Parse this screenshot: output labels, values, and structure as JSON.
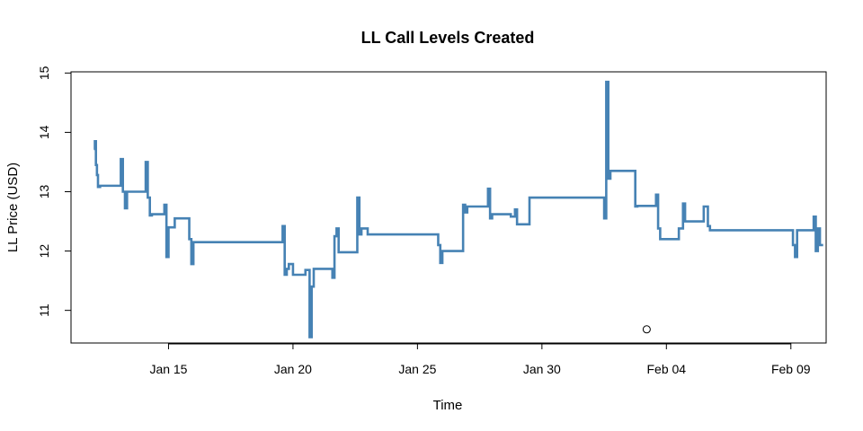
{
  "chart_data": {
    "type": "line",
    "title": "LL Call Levels Created",
    "xlabel": "Time",
    "ylabel": "LL Price (USD)",
    "xlim": [
      "2024-01-11 02:00",
      "2024-02-10 10:00"
    ],
    "ylim": [
      10.45,
      15.02
    ],
    "x_ticks": [
      {
        "date": "2024-01-15",
        "label": "Jan 15"
      },
      {
        "date": "2024-01-20",
        "label": "Jan 20"
      },
      {
        "date": "2024-01-25",
        "label": "Jan 25"
      },
      {
        "date": "2024-01-30",
        "label": "Jan 30"
      },
      {
        "date": "2024-02-04",
        "label": "Feb 04"
      },
      {
        "date": "2024-02-09",
        "label": "Feb 09"
      }
    ],
    "y_ticks": [
      11,
      12,
      13,
      14,
      15
    ],
    "grid": false,
    "series": [
      {
        "color": "#4682b4",
        "style": "step-line",
        "x": [
          "2024-01-12 00:00",
          "2024-01-12 01:00",
          "2024-01-12 02:00",
          "2024-01-12 03:00",
          "2024-01-12 04:00",
          "2024-01-12 06:00",
          "2024-01-12 08:00",
          "2024-01-12 10:00",
          "2024-01-12 12:00",
          "2024-01-13 00:00",
          "2024-01-13 02:00",
          "2024-01-13 04:00",
          "2024-01-13 06:00",
          "2024-01-13 08:00",
          "2024-01-13 12:00",
          "2024-01-14 00:00",
          "2024-01-14 02:00",
          "2024-01-14 04:00",
          "2024-01-14 06:00",
          "2024-01-14 08:00",
          "2024-01-14 12:00",
          "2024-01-14 18:00",
          "2024-01-14 20:00",
          "2024-01-14 22:00",
          "2024-01-15 00:00",
          "2024-01-15 06:00",
          "2024-01-15 12:00",
          "2024-01-15 18:00",
          "2024-01-15 20:00",
          "2024-01-15 22:00",
          "2024-01-16 00:00",
          "2024-01-16 04:00",
          "2024-01-19 12:00",
          "2024-01-19 14:00",
          "2024-01-19 16:00",
          "2024-01-19 18:00",
          "2024-01-19 20:00",
          "2024-01-20 00:00",
          "2024-01-20 12:00",
          "2024-01-20 14:00",
          "2024-01-20 16:00",
          "2024-01-20 18:00",
          "2024-01-20 20:00",
          "2024-01-21 00:00",
          "2024-01-21 12:00",
          "2024-01-21 14:00",
          "2024-01-21 16:00",
          "2024-01-21 18:00",
          "2024-01-21 20:00",
          "2024-01-22 00:00",
          "2024-01-22 12:00",
          "2024-01-22 14:00",
          "2024-01-22 16:00",
          "2024-01-22 18:00",
          "2024-01-23 00:00",
          "2024-01-25 18:00",
          "2024-01-25 20:00",
          "2024-01-25 22:00",
          "2024-01-26 00:00",
          "2024-01-26 18:00",
          "2024-01-26 20:00",
          "2024-01-26 22:00",
          "2024-01-27 00:00",
          "2024-01-27 18:00",
          "2024-01-27 20:00",
          "2024-01-27 22:00",
          "2024-01-28 00:00",
          "2024-01-28 18:00",
          "2024-01-28 20:00",
          "2024-01-28 22:00",
          "2024-01-29 00:00",
          "2024-01-29 12:00",
          "2024-01-29 14:00",
          "2024-01-29 16:00",
          "2024-02-01 12:00",
          "2024-02-01 14:00",
          "2024-02-01 16:00",
          "2024-02-01 18:00",
          "2024-02-01 20:00",
          "2024-02-02 00:00",
          "2024-02-02 18:00",
          "2024-02-02 20:00",
          "2024-02-03 12:00",
          "2024-02-03 14:00",
          "2024-02-03 16:00",
          "2024-02-03 18:00",
          "2024-02-04 12:00",
          "2024-02-04 14:00",
          "2024-02-04 16:00",
          "2024-02-04 18:00",
          "2024-02-05 12:00",
          "2024-02-05 14:00",
          "2024-02-05 16:00",
          "2024-02-05 18:00",
          "2024-02-08 22:00",
          "2024-02-09 00:00",
          "2024-02-09 02:00",
          "2024-02-09 04:00",
          "2024-02-09 06:00",
          "2024-02-09 20:00",
          "2024-02-09 22:00",
          "2024-02-10 00:00",
          "2024-02-10 02:00",
          "2024-02-10 04:00",
          "2024-02-10 06:00"
        ],
        "y": [
          13.72,
          13.85,
          13.45,
          13.28,
          13.08,
          13.1,
          13.1,
          13.1,
          13.1,
          13.1,
          13.55,
          13.0,
          12.72,
          13.0,
          13.0,
          13.0,
          13.5,
          12.9,
          12.6,
          12.62,
          12.62,
          12.62,
          12.78,
          11.9,
          12.4,
          12.55,
          12.55,
          12.55,
          12.2,
          11.78,
          12.15,
          12.15,
          12.15,
          12.42,
          11.6,
          11.7,
          11.78,
          11.6,
          11.68,
          11.68,
          10.55,
          11.4,
          11.7,
          11.7,
          11.7,
          11.55,
          12.25,
          12.38,
          11.98,
          11.98,
          11.98,
          12.9,
          12.28,
          12.38,
          12.28,
          12.28,
          12.1,
          11.8,
          12.0,
          12.0,
          12.78,
          12.65,
          12.75,
          12.75,
          13.05,
          12.55,
          12.62,
          12.58,
          12.58,
          12.7,
          12.45,
          12.9,
          12.9,
          12.9,
          12.55,
          14.85,
          13.22,
          13.35,
          13.35,
          13.35,
          12.75,
          12.76,
          12.76,
          12.95,
          12.38,
          12.2,
          12.38,
          12.38,
          12.8,
          12.5,
          12.75,
          12.75,
          12.42,
          12.35,
          12.35,
          12.35,
          12.1,
          11.9,
          12.35,
          12.35,
          12.58,
          12.0,
          12.38,
          12.1,
          12.08
        ]
      }
    ],
    "points": [
      {
        "x": "2024-02-03 05:00",
        "y": 10.68,
        "marker": "open-circle"
      }
    ]
  }
}
